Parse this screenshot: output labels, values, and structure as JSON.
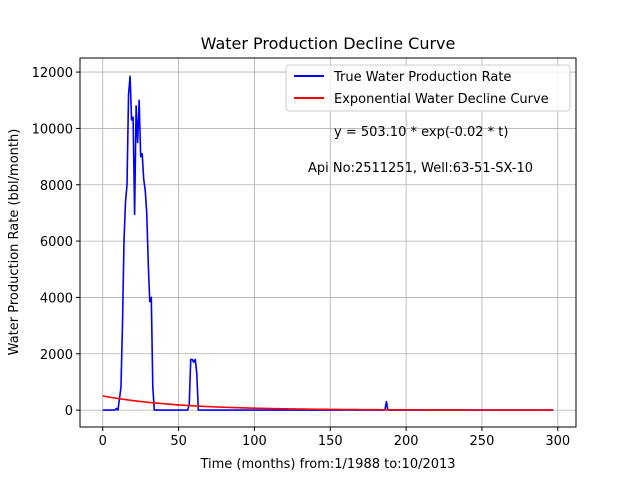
{
  "chart_data": {
    "type": "line",
    "title": "Water Production Decline Curve",
    "xlabel": "Time (months) from:1/1988 to:10/2013",
    "ylabel": "Water Production Rate (bbl/month)",
    "xlim": [
      -15,
      312
    ],
    "ylim": [
      -600,
      12500
    ],
    "xticks": [
      0,
      50,
      100,
      150,
      200,
      250,
      300
    ],
    "yticks": [
      0,
      2000,
      4000,
      6000,
      8000,
      10000,
      12000
    ],
    "grid": true,
    "legend_position": "top-right",
    "annotations": [
      "y = 503.10 * exp(-0.02 * t)",
      "Api No:2511251, Well:63-51-SX-10"
    ],
    "series": [
      {
        "name": "True Water Production Rate",
        "color": "#0000ff",
        "x": [
          0,
          8,
          9,
          10,
          11,
          12,
          13,
          14,
          15,
          16,
          17,
          18,
          19,
          20,
          21,
          22,
          23,
          24,
          25,
          26,
          27,
          28,
          29,
          30,
          31,
          32,
          33,
          34,
          35,
          36,
          37,
          56,
          57,
          58,
          59,
          60,
          61,
          62,
          63,
          64,
          186,
          187,
          188,
          189,
          297
        ],
        "y": [
          0,
          0,
          60,
          0,
          400,
          800,
          3000,
          6000,
          7400,
          8000,
          11200,
          11850,
          10300,
          10400,
          6950,
          10800,
          9500,
          11000,
          9000,
          9100,
          8200,
          7800,
          7000,
          5200,
          3850,
          4000,
          800,
          0,
          0,
          0,
          0,
          0,
          200,
          1800,
          1800,
          1700,
          1800,
          1300,
          0,
          0,
          0,
          300,
          0,
          0,
          0
        ]
      },
      {
        "name": "Exponential Water Decline Curve",
        "color": "#ff0000",
        "curve": "exp",
        "a": 503.1,
        "b": -0.02,
        "x_range": [
          0,
          297
        ]
      }
    ]
  }
}
